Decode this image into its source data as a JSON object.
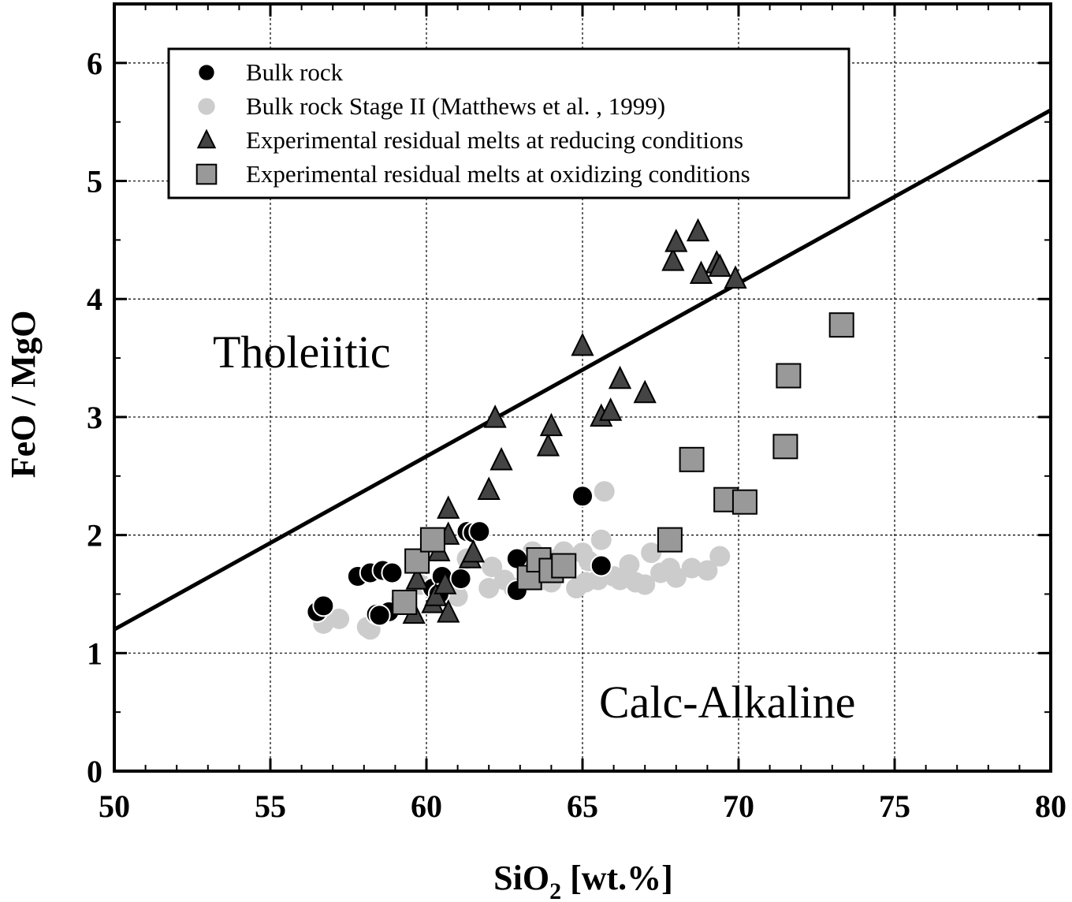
{
  "chart_data": {
    "type": "scatter",
    "title": "",
    "xlabel_main": "SiO",
    "xlabel_sub": "2",
    "xlabel_rest": " [wt.%]",
    "ylabel": "FeO / MgO",
    "xlim": [
      50,
      80
    ],
    "ylim": [
      0,
      6.5
    ],
    "xticks": [
      "50",
      "55",
      "60",
      "65",
      "70",
      "75",
      "80"
    ],
    "yticks": [
      "0",
      "1",
      "2",
      "3",
      "4",
      "5",
      "6"
    ],
    "grid": true,
    "legend_placement": "top-left",
    "regions": {
      "upper": "Tholeiitic",
      "lower": "Calc-Alkaline"
    },
    "divider_line": {
      "x": [
        50,
        80
      ],
      "y": [
        1.2,
        5.6
      ]
    },
    "series": [
      {
        "name": "Bulk rock",
        "marker": "circle",
        "color": "#000000",
        "x": [
          56.5,
          56.7,
          57.8,
          58.2,
          58.4,
          58.6,
          58.8,
          58.5,
          58.9,
          60.2,
          60.5,
          60.4,
          61.1,
          61.3,
          61.5,
          61.7,
          62.9,
          62.9,
          65.0,
          65.6
        ],
        "y": [
          1.35,
          1.4,
          1.65,
          1.68,
          1.33,
          1.7,
          1.35,
          1.32,
          1.68,
          1.55,
          1.65,
          1.5,
          1.63,
          2.03,
          2.02,
          2.03,
          1.8,
          1.53,
          2.33,
          1.74
        ]
      },
      {
        "name": "Bulk rock Stage II (Matthews et al. , 1999)",
        "marker": "circle",
        "color": "#cccccc",
        "x": [
          56.7,
          57.2,
          58.1,
          58.2,
          59.2,
          59.8,
          61.0,
          61.3,
          62.0,
          62.1,
          62.5,
          62.8,
          63.4,
          63.7,
          64.0,
          64.2,
          64.4,
          64.8,
          65.0,
          65.1,
          65.2,
          65.5,
          65.6,
          65.7,
          66.0,
          66.2,
          66.5,
          66.7,
          67.0,
          67.2,
          67.5,
          67.8,
          68.0,
          68.5,
          69.0,
          69.4
        ],
        "y": [
          1.25,
          1.29,
          1.22,
          1.2,
          1.45,
          1.58,
          1.48,
          1.8,
          1.55,
          1.73,
          1.62,
          1.55,
          1.86,
          1.62,
          1.6,
          1.8,
          1.86,
          1.55,
          1.85,
          1.6,
          1.78,
          1.62,
          1.96,
          2.37,
          1.65,
          1.62,
          1.75,
          1.6,
          1.58,
          1.85,
          1.68,
          1.72,
          1.64,
          1.72,
          1.7,
          1.82
        ]
      },
      {
        "name": "Experimental residual melts at reducing conditions",
        "marker": "triangle",
        "color": "#444444",
        "x": [
          59.6,
          59.7,
          60.2,
          60.3,
          60.4,
          60.6,
          60.7,
          60.7,
          60.7,
          61.4,
          61.5,
          62.0,
          62.2,
          62.4,
          63.9,
          64.0,
          65.0,
          65.6,
          65.9,
          66.2,
          67.0,
          67.9,
          68.0,
          68.7,
          68.8,
          69.3,
          69.4,
          69.9
        ],
        "y": [
          1.33,
          1.62,
          1.42,
          1.48,
          1.86,
          1.58,
          1.34,
          2.0,
          2.22,
          1.8,
          1.85,
          2.38,
          2.99,
          2.63,
          2.75,
          2.92,
          3.6,
          3.0,
          3.05,
          3.32,
          3.2,
          4.32,
          4.48,
          4.57,
          4.21,
          4.3,
          4.27,
          4.17
        ]
      },
      {
        "name": "Experimental residual melts at oxidizing conditions",
        "marker": "square",
        "color": "#999999",
        "x": [
          59.3,
          59.7,
          60.2,
          63.3,
          63.6,
          64.0,
          64.4,
          67.8,
          68.5,
          69.6,
          70.2,
          71.5,
          71.6,
          73.3
        ],
        "y": [
          1.43,
          1.78,
          1.96,
          1.64,
          1.79,
          1.7,
          1.74,
          1.96,
          2.64,
          2.3,
          2.28,
          2.75,
          3.35,
          3.78
        ]
      }
    ]
  }
}
